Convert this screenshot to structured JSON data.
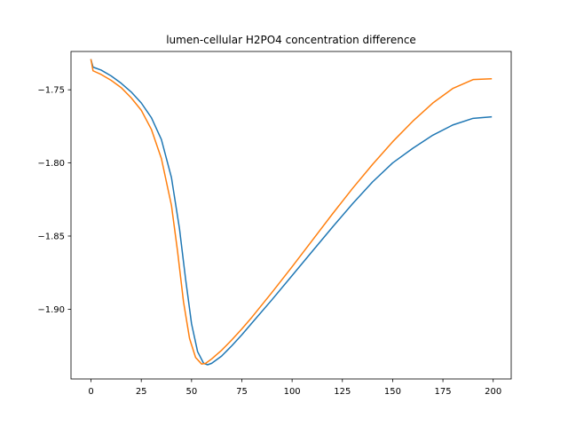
{
  "chart_data": {
    "type": "line",
    "title": "lumen-cellular H2PO4 concentration difference",
    "xlabel": "",
    "ylabel": "",
    "xlim": [
      -9.95,
      208.95
    ],
    "ylim": [
      -1.9477,
      -1.7238
    ],
    "xticks": [
      0,
      25,
      50,
      75,
      100,
      125,
      150,
      175,
      200
    ],
    "yticks": [
      -1.9,
      -1.85,
      -1.8,
      -1.75
    ],
    "xtick_labels": [
      "0",
      "25",
      "50",
      "75",
      "100",
      "125",
      "150",
      "175",
      "200"
    ],
    "ytick_labels": [
      "−1.90",
      "−1.85",
      "−1.80",
      "−1.75"
    ],
    "grid": false,
    "legend": "none",
    "series": [
      {
        "color": "#1f77b4",
        "points": [
          [
            0,
            -1.7295
          ],
          [
            1,
            -1.7345
          ],
          [
            5,
            -1.7365
          ],
          [
            10,
            -1.7405
          ],
          [
            15,
            -1.7455
          ],
          [
            20,
            -1.7515
          ],
          [
            25,
            -1.759
          ],
          [
            30,
            -1.769
          ],
          [
            35,
            -1.784
          ],
          [
            40,
            -1.81
          ],
          [
            44,
            -1.845
          ],
          [
            47,
            -1.879
          ],
          [
            50,
            -1.91
          ],
          [
            53,
            -1.929
          ],
          [
            56,
            -1.937
          ],
          [
            58,
            -1.938
          ],
          [
            60,
            -1.937
          ],
          [
            65,
            -1.932
          ],
          [
            70,
            -1.925
          ],
          [
            75,
            -1.9175
          ],
          [
            80,
            -1.9095
          ],
          [
            90,
            -1.8935
          ],
          [
            100,
            -1.877
          ],
          [
            110,
            -1.8605
          ],
          [
            120,
            -1.844
          ],
          [
            130,
            -1.828
          ],
          [
            140,
            -1.813
          ],
          [
            150,
            -1.8
          ],
          [
            160,
            -1.79
          ],
          [
            170,
            -1.781
          ],
          [
            180,
            -1.774
          ],
          [
            190,
            -1.7695
          ],
          [
            199,
            -1.7685
          ]
        ]
      },
      {
        "color": "#ff7f0e",
        "points": [
          [
            0,
            -1.7295
          ],
          [
            1,
            -1.737
          ],
          [
            5,
            -1.7395
          ],
          [
            10,
            -1.7435
          ],
          [
            15,
            -1.7485
          ],
          [
            20,
            -1.7555
          ],
          [
            25,
            -1.764
          ],
          [
            30,
            -1.777
          ],
          [
            35,
            -1.797
          ],
          [
            40,
            -1.829
          ],
          [
            43,
            -1.86
          ],
          [
            46,
            -1.895
          ],
          [
            49,
            -1.92
          ],
          [
            52,
            -1.933
          ],
          [
            55,
            -1.9375
          ],
          [
            57,
            -1.937
          ],
          [
            60,
            -1.934
          ],
          [
            65,
            -1.928
          ],
          [
            70,
            -1.921
          ],
          [
            75,
            -1.9135
          ],
          [
            80,
            -1.9055
          ],
          [
            90,
            -1.8885
          ],
          [
            100,
            -1.871
          ],
          [
            110,
            -1.853
          ],
          [
            120,
            -1.835
          ],
          [
            130,
            -1.8175
          ],
          [
            140,
            -1.801
          ],
          [
            150,
            -1.7855
          ],
          [
            160,
            -1.7715
          ],
          [
            170,
            -1.759
          ],
          [
            180,
            -1.749
          ],
          [
            190,
            -1.743
          ],
          [
            199,
            -1.7425
          ]
        ]
      }
    ]
  }
}
